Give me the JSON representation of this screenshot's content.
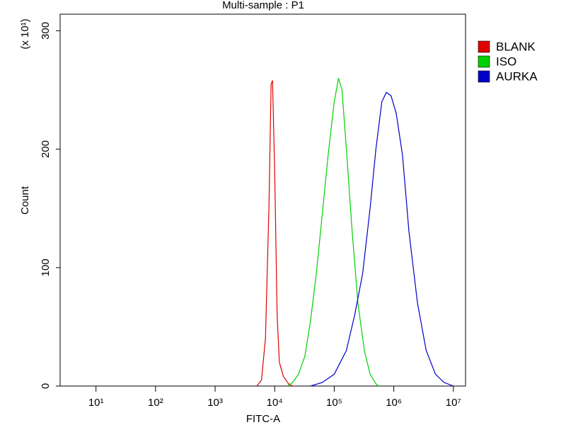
{
  "chart_data": {
    "type": "line",
    "title": "Multi-sample : P1",
    "xlabel": "FITC-A",
    "ylabel": "Count",
    "y_multiplier": "(x 10¹)",
    "xscale": "log",
    "xlim": [
      2.5,
      16000000
    ],
    "ylim": [
      0,
      314
    ],
    "xticks": [
      {
        "value": 10,
        "label": "10¹"
      },
      {
        "value": 100,
        "label": "10²"
      },
      {
        "value": 1000,
        "label": "10³"
      },
      {
        "value": 10000,
        "label": "10⁴"
      },
      {
        "value": 100000,
        "label": "10⁵"
      },
      {
        "value": 1000000,
        "label": "10⁶"
      },
      {
        "value": 10000000,
        "label": "10⁷"
      }
    ],
    "yticks": [
      0,
      100,
      200,
      300
    ],
    "legend": "outside right",
    "series": [
      {
        "name": "BLANK",
        "color": "#e00000",
        "x": [
          5000,
          6000,
          7000,
          8000,
          8700,
          9200,
          10000,
          11000,
          12000,
          14000,
          17000,
          20000
        ],
        "values": [
          0,
          5,
          40,
          150,
          255,
          258,
          180,
          60,
          20,
          8,
          2,
          0
        ]
      },
      {
        "name": "ISO",
        "color": "#00d000",
        "x": [
          16000,
          20000,
          25000,
          32000,
          40000,
          50000,
          63000,
          79000,
          100000,
          118000,
          135000,
          160000,
          200000,
          250000,
          320000,
          400000,
          500000,
          560000
        ],
        "values": [
          0,
          3,
          10,
          25,
          55,
          95,
          145,
          195,
          240,
          260,
          250,
          200,
          130,
          70,
          30,
          10,
          2,
          0
        ]
      },
      {
        "name": "AURKA",
        "color": "#0000c8",
        "x": [
          40000,
          63000,
          100000,
          160000,
          220000,
          300000,
          400000,
          500000,
          630000,
          750000,
          900000,
          1100000,
          1400000,
          1800000,
          2500000,
          3500000,
          5000000,
          7000000,
          10000000
        ],
        "values": [
          0,
          3,
          10,
          30,
          60,
          95,
          150,
          200,
          240,
          248,
          245,
          230,
          195,
          130,
          70,
          30,
          10,
          3,
          0
        ]
      }
    ]
  }
}
